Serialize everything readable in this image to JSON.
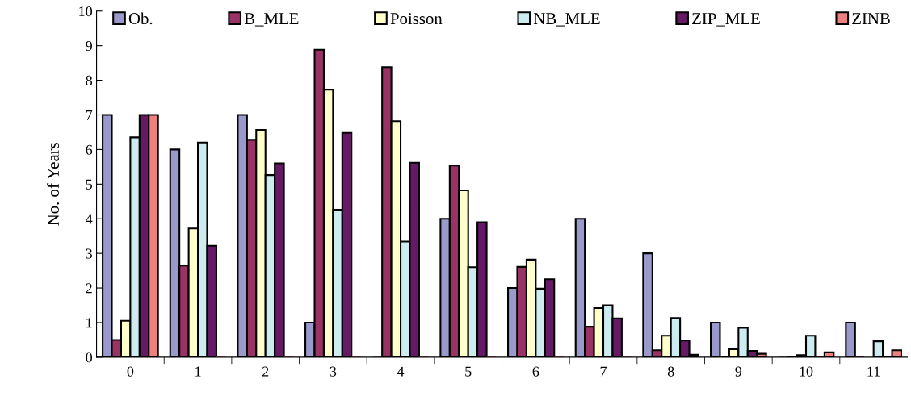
{
  "chart_data": {
    "type": "bar",
    "ylabel": "No. of Years",
    "categories": [
      "0",
      "1",
      "2",
      "3",
      "4",
      "5",
      "6",
      "7",
      "8",
      "9",
      "10",
      "11"
    ],
    "series": [
      {
        "name": "Ob.",
        "color": "#9999cc",
        "values": [
          7,
          6,
          7,
          1,
          0,
          4,
          2,
          4,
          3,
          1,
          0,
          1
        ]
      },
      {
        "name": "B_MLE",
        "color": "#993366",
        "values": [
          0.5,
          2.65,
          6.28,
          8.88,
          8.38,
          5.54,
          2.61,
          0.88,
          0.2,
          0.01,
          0.01,
          0
        ]
      },
      {
        "name": "Poisson",
        "color": "#ffffcc",
        "values": [
          1.05,
          3.72,
          6.57,
          7.73,
          6.82,
          4.82,
          2.82,
          1.42,
          0.62,
          0.23,
          0.06,
          null
        ]
      },
      {
        "name": "NB_MLE",
        "color": "#ccecf0",
        "values": [
          6.35,
          6.2,
          5.26,
          4.26,
          3.34,
          2.6,
          1.98,
          1.5,
          1.13,
          0.85,
          0.62,
          0.46
        ]
      },
      {
        "name": "ZIP_MLE",
        "color": "#661a66",
        "values": [
          7,
          3.22,
          5.6,
          6.48,
          5.62,
          3.9,
          2.25,
          1.12,
          0.48,
          0.18,
          null,
          0.01
        ]
      },
      {
        "name": "ZINB",
        "color": "#f08080",
        "values": [
          7,
          0,
          0,
          0,
          0,
          0,
          null,
          null,
          0.07,
          0.1,
          0.14,
          0.2
        ]
      }
    ],
    "ylim": [
      0,
      10
    ],
    "yticks": [
      0,
      1,
      2,
      3,
      4,
      5,
      6,
      7,
      8,
      9,
      10
    ],
    "legend": "top",
    "grid": false
  }
}
